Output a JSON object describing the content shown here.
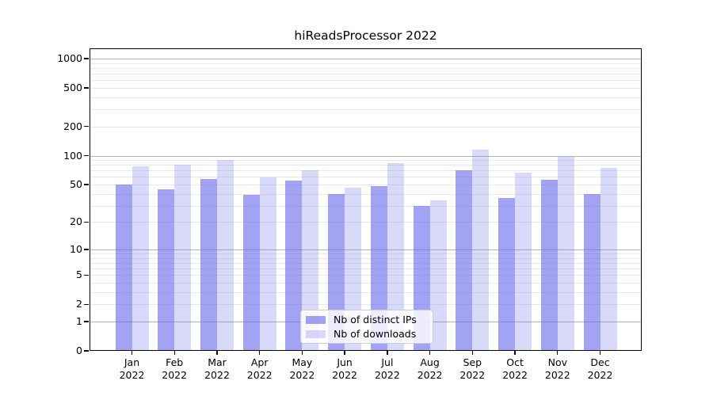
{
  "title": "hiReadsProcessor 2022",
  "chart_data": {
    "type": "bar",
    "title": "hiReadsProcessor 2022",
    "categories": [
      "Jan 2022",
      "Feb 2022",
      "Mar 2022",
      "Apr 2022",
      "May 2022",
      "Jun 2022",
      "Jul 2022",
      "Aug 2022",
      "Sep 2022",
      "Oct 2022",
      "Nov 2022",
      "Dec 2022"
    ],
    "series": [
      {
        "name": "Nb of distinct IPs",
        "values": [
          50,
          45,
          57,
          39,
          55,
          40,
          48,
          30,
          70,
          36,
          56,
          40
        ],
        "color": "#6666eb",
        "alpha": 0.6
      },
      {
        "name": "Nb of downloads",
        "values": [
          78,
          81,
          91,
          59,
          70,
          46,
          84,
          34,
          115,
          66,
          98,
          74
        ],
        "color": "#6666eb",
        "alpha": 0.25
      }
    ],
    "yscale": "log1p",
    "y_ticks": [
      1000,
      500,
      200,
      100,
      50,
      20,
      10,
      5,
      2,
      1,
      0
    ],
    "ylim": [
      0,
      1270
    ],
    "grid": true,
    "legend_position": "lower center",
    "colors": {
      "major_grid": "#b3b3b3",
      "minor_grid": "#e9e9e9",
      "spine": "#000000"
    }
  }
}
